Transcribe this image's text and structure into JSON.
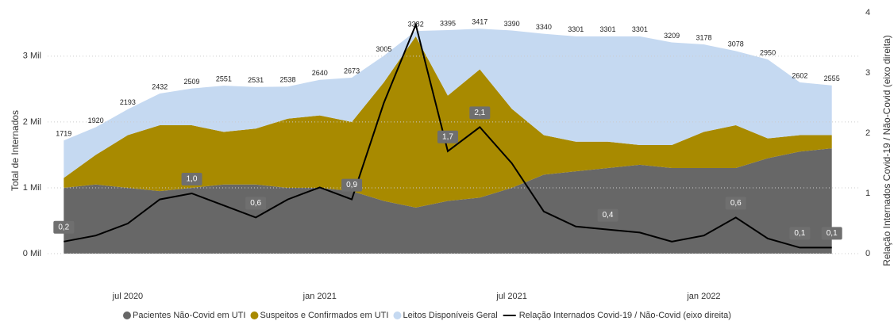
{
  "chart_data": {
    "type": "stacked-area-line",
    "y_label": "Total de Internados",
    "y2_label": "Relação Internados Covid-19 / Não-Covid (eixo direita)",
    "x": [
      "2020-05",
      "2020-06",
      "2020-07",
      "2020-08",
      "2020-09",
      "2020-10",
      "2020-11",
      "2020-12",
      "2021-01",
      "2021-02",
      "2021-03",
      "2021-04",
      "2021-05",
      "2021-06",
      "2021-07",
      "2021-08",
      "2021-09",
      "2021-10",
      "2021-11",
      "2021-12",
      "2022-01",
      "2022-02",
      "2022-03",
      "2022-04",
      "2022-05"
    ],
    "xlim": [
      "2020-04",
      "2022-06"
    ],
    "xticks": [
      {
        "value": "2020-07",
        "label": "jul 2020"
      },
      {
        "value": "2021-01",
        "label": "jan 2021"
      },
      {
        "value": "2021-07",
        "label": "jul 2021"
      },
      {
        "value": "2022-01",
        "label": "jan 2022"
      }
    ],
    "ylim": [
      0,
      3600
    ],
    "yticks": [
      {
        "value": 0,
        "label": "0 Mil"
      },
      {
        "value": 1000,
        "label": "1 Mil"
      },
      {
        "value": 2000,
        "label": "2 Mil"
      },
      {
        "value": 3000,
        "label": "3 Mil"
      }
    ],
    "y2lim": [
      0,
      4
    ],
    "y2ticks": [
      0,
      1,
      2,
      3,
      4
    ],
    "grid": true,
    "series": [
      {
        "name": "Pacientes Não-Covid em UTI",
        "color": "#676767",
        "stack": true,
        "values": [
          1000,
          1050,
          1000,
          950,
          1000,
          1050,
          1050,
          1000,
          1000,
          950,
          800,
          700,
          800,
          850,
          1000,
          1200,
          1250,
          1300,
          1350,
          1300,
          1300,
          1300,
          1450,
          1550,
          1600
        ]
      },
      {
        "name": "Suspeitos e Confirmados em UTI",
        "color": "#a88a00",
        "stack": true,
        "values": [
          150,
          450,
          800,
          1000,
          950,
          800,
          850,
          1050,
          1100,
          1050,
          1800,
          2600,
          1600,
          1950,
          1200,
          600,
          450,
          400,
          300,
          350,
          550,
          650,
          300,
          250,
          200
        ]
      },
      {
        "name": "Leitos Disponíveis Geral",
        "color": "#c5d9f1",
        "stack": true,
        "values": [
          569,
          420,
          393,
          482,
          559,
          701,
          631,
          488,
          540,
          673,
          405,
          82,
          995,
          617,
          1190,
          1540,
          1601,
          1601,
          1651,
          1559,
          1328,
          1128,
          1200,
          802,
          755
        ]
      },
      {
        "name": "Relação Internados Covid-19 / Não-Covid (eixo direita)",
        "color": "#000000",
        "axis": "y2",
        "values": [
          0.2,
          0.3,
          0.5,
          0.9,
          1.0,
          0.8,
          0.6,
          0.9,
          1.1,
          0.9,
          2.5,
          3.8,
          1.7,
          2.1,
          1.5,
          0.7,
          0.45,
          0.4,
          0.35,
          0.2,
          0.3,
          0.6,
          0.25,
          0.1,
          0.1
        ],
        "value_labels": [
          "0,2",
          null,
          null,
          null,
          "1,0",
          null,
          "0,6",
          null,
          null,
          "0,9",
          null,
          null,
          "1,7",
          "2,1",
          null,
          null,
          null,
          "0,4",
          null,
          null,
          null,
          "0,6",
          null,
          "0,1",
          "0,1"
        ]
      }
    ],
    "total_labels": [
      1719,
      1920,
      2193,
      2432,
      2509,
      2551,
      2531,
      2538,
      2640,
      2673,
      3005,
      3382,
      3395,
      3417,
      3390,
      3340,
      3301,
      3301,
      3301,
      3209,
      3178,
      3078,
      2950,
      2602,
      2555
    ]
  }
}
